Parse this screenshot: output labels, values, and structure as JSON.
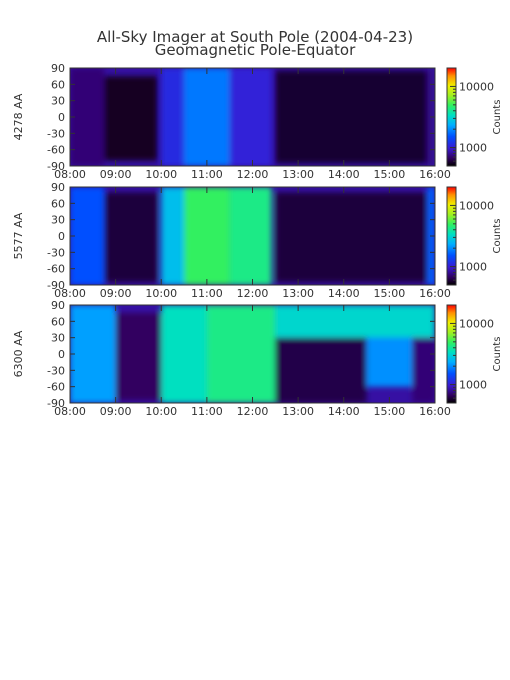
{
  "title": "All-Sky Imager at South Pole (2004-04-23)",
  "subtitle": "Geomagnetic Pole-Equator",
  "colorbar_label": "Counts",
  "colorbar_ticks": [
    "1000",
    "10000"
  ],
  "chart_data": [
    {
      "type": "heatmap",
      "ylabel": "4278 AA",
      "x_ticks": [
        "08:00",
        "09:00",
        "10:00",
        "11:00",
        "12:00",
        "13:00",
        "14:00",
        "15:00",
        "16:00"
      ],
      "x_range": [
        "08:00",
        "16:00"
      ],
      "y_ticks": [
        90,
        60,
        30,
        0,
        -30,
        -60,
        -90
      ],
      "y_range": [
        -90,
        90
      ],
      "colorbar_range": [
        500,
        20000
      ],
      "colorbar_scale": "log",
      "regions": [
        {
          "x": [
            "08:00",
            "08:45"
          ],
          "y": [
            -90,
            90
          ],
          "level": 0.1
        },
        {
          "x": [
            "08:45",
            "09:55"
          ],
          "y": [
            -80,
            75
          ],
          "level": 0.03
        },
        {
          "x": [
            "10:00",
            "10:30"
          ],
          "y": [
            -90,
            90
          ],
          "level": 0.22
        },
        {
          "x": [
            "10:30",
            "11:30"
          ],
          "y": [
            -90,
            90
          ],
          "level": 0.35
        },
        {
          "x": [
            "11:30",
            "12:25"
          ],
          "y": [
            -90,
            90
          ],
          "level": 0.2
        },
        {
          "x": [
            "12:30",
            "15:50"
          ],
          "y": [
            -85,
            85
          ],
          "level": 0.04
        },
        {
          "x": [
            "15:50",
            "16:00"
          ],
          "y": [
            -90,
            90
          ],
          "level": 0.12
        }
      ]
    },
    {
      "type": "heatmap",
      "ylabel": "5577 AA",
      "x_ticks": [
        "08:00",
        "09:00",
        "10:00",
        "11:00",
        "12:00",
        "13:00",
        "14:00",
        "15:00",
        "16:00"
      ],
      "x_range": [
        "08:00",
        "16:00"
      ],
      "y_ticks": [
        90,
        60,
        30,
        0,
        -30,
        -60,
        -90
      ],
      "y_range": [
        -90,
        90
      ],
      "colorbar_range": [
        500,
        20000
      ],
      "colorbar_scale": "log",
      "regions": [
        {
          "x": [
            "08:00",
            "08:45"
          ],
          "y": [
            -90,
            90
          ],
          "level": 0.3
        },
        {
          "x": [
            "08:45",
            "09:55"
          ],
          "y": [
            -85,
            80
          ],
          "level": 0.05
        },
        {
          "x": [
            "10:00",
            "10:30"
          ],
          "y": [
            -90,
            90
          ],
          "level": 0.45
        },
        {
          "x": [
            "10:30",
            "11:30"
          ],
          "y": [
            -90,
            90
          ],
          "level": 0.62
        },
        {
          "x": [
            "11:30",
            "12:25"
          ],
          "y": [
            -90,
            90
          ],
          "level": 0.58
        },
        {
          "x": [
            "12:30",
            "15:50"
          ],
          "y": [
            -85,
            80
          ],
          "level": 0.05
        },
        {
          "x": [
            "15:50",
            "16:00"
          ],
          "y": [
            -90,
            90
          ],
          "level": 0.32
        }
      ]
    },
    {
      "type": "heatmap",
      "ylabel": "6300 AA",
      "x_ticks": [
        "08:00",
        "09:00",
        "10:00",
        "11:00",
        "12:00",
        "13:00",
        "14:00",
        "15:00",
        "16:00"
      ],
      "x_range": [
        "08:00",
        "16:00"
      ],
      "y_ticks": [
        90,
        60,
        30,
        0,
        -30,
        -60,
        -90
      ],
      "y_range": [
        -90,
        90
      ],
      "colorbar_range": [
        500,
        20000
      ],
      "colorbar_scale": "log",
      "regions": [
        {
          "x": [
            "08:00",
            "09:00"
          ],
          "y": [
            -90,
            90
          ],
          "level": 0.4
        },
        {
          "x": [
            "09:00",
            "10:00"
          ],
          "y": [
            -85,
            75
          ],
          "level": 0.08
        },
        {
          "x": [
            "10:00",
            "11:00"
          ],
          "y": [
            -90,
            90
          ],
          "level": 0.52
        },
        {
          "x": [
            "11:00",
            "12:30"
          ],
          "y": [
            -90,
            90
          ],
          "level": 0.58
        },
        {
          "x": [
            "12:30",
            "14:30"
          ],
          "y": [
            -90,
            30
          ],
          "level": 0.06
        },
        {
          "x": [
            "12:30",
            "16:00"
          ],
          "y": [
            30,
            90
          ],
          "level": 0.5
        },
        {
          "x": [
            "14:30",
            "15:30"
          ],
          "y": [
            -60,
            30
          ],
          "level": 0.38
        },
        {
          "x": [
            "15:30",
            "16:00"
          ],
          "y": [
            -90,
            30
          ],
          "level": 0.1
        }
      ]
    }
  ]
}
